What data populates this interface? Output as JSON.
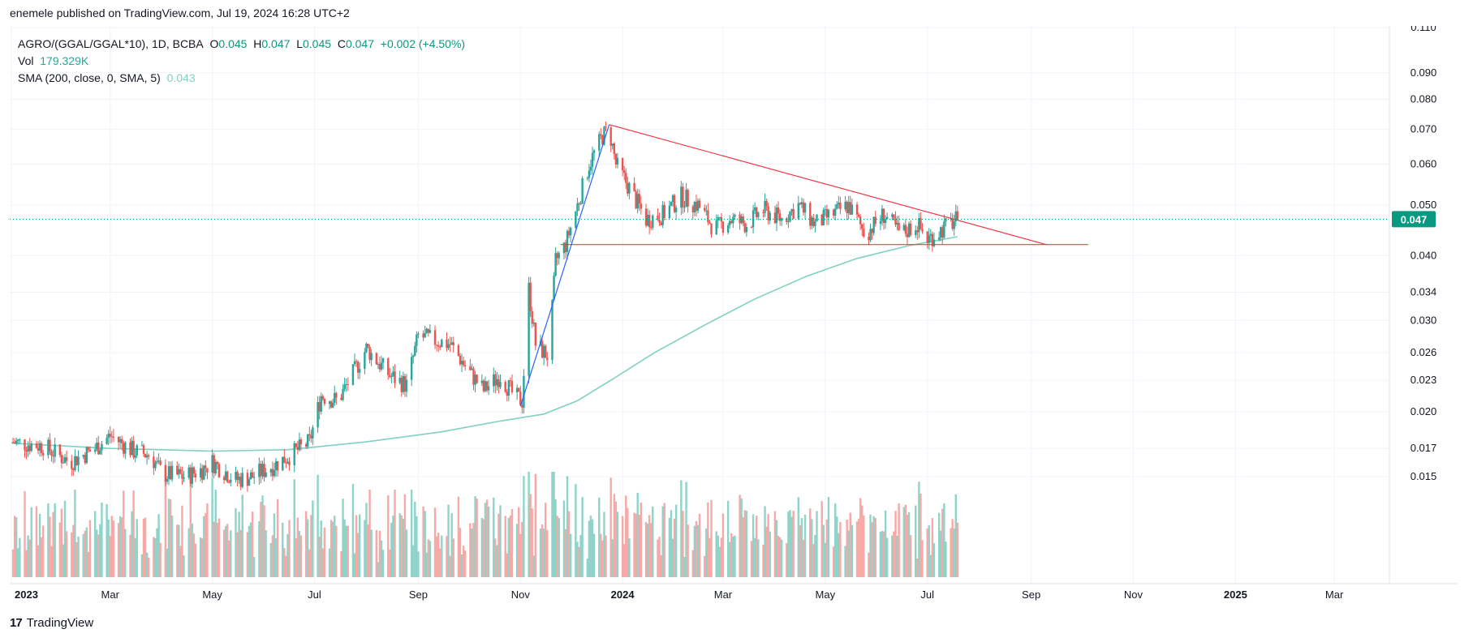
{
  "header": {
    "published": "enemele published on TradingView.com, Jul 19, 2024 16:28 UTC+2"
  },
  "legend": {
    "symbol": "AGRO/(GGAL/GGAL*10), 1D, BCBA",
    "o_label": "O",
    "o": "0.045",
    "h_label": "H",
    "h": "0.047",
    "l_label": "L",
    "l": "0.045",
    "c_label": "C",
    "c": "0.047",
    "change": "+0.002 (+4.50%)",
    "vol_label": "Vol",
    "vol": "179.329K",
    "sma_label": "SMA (200, close, 0, SMA, 5)",
    "sma": "0.043"
  },
  "brand": {
    "name": "TradingView",
    "logo": "17"
  },
  "colors": {
    "up": "#26a69a",
    "down": "#ef5350",
    "up_vol": "#8fd3c9",
    "down_vol": "#f7a9a7",
    "sma": "#7fd1c1",
    "trendline": "#f23645",
    "impulse": "#2962ff",
    "price_tag": "#089981"
  },
  "chart_data": {
    "type": "candlestick",
    "scale": "log",
    "interval": "1D",
    "y_ticks": [
      0.11,
      0.09,
      0.08,
      0.07,
      0.06,
      0.05,
      0.04,
      0.034,
      0.03,
      0.026,
      0.023,
      0.02,
      0.017,
      0.015
    ],
    "y_tick_labels": [
      "0.110",
      "0.090",
      "0.080",
      "0.070",
      "0.060",
      "0.050",
      "0.040",
      "0.034",
      "0.030",
      "0.026",
      "0.023",
      "0.020",
      "0.017",
      "0.015"
    ],
    "x_ticks": [
      {
        "date": "2023-01-01",
        "label": "2023",
        "bold": true
      },
      {
        "date": "2023-03-01",
        "label": "Mar"
      },
      {
        "date": "2023-05-01",
        "label": "May"
      },
      {
        "date": "2023-07-01",
        "label": "Jul"
      },
      {
        "date": "2023-09-01",
        "label": "Sep"
      },
      {
        "date": "2023-11-01",
        "label": "Nov"
      },
      {
        "date": "2024-01-01",
        "label": "2024",
        "bold": true
      },
      {
        "date": "2024-03-01",
        "label": "Mar"
      },
      {
        "date": "2024-05-01",
        "label": "May"
      },
      {
        "date": "2024-07-01",
        "label": "Jul"
      },
      {
        "date": "2024-09-01",
        "label": "Sep"
      },
      {
        "date": "2024-11-01",
        "label": "Nov"
      },
      {
        "date": "2025-01-01",
        "label": "2025",
        "bold": true
      },
      {
        "date": "2025-03-01",
        "label": "Mar"
      }
    ],
    "x_range": [
      "2023-01-01",
      "2025-03-31"
    ],
    "last_price": 0.047,
    "last_price_label": "0.047",
    "price_path": [
      [
        "2023-01-01",
        0.0175
      ],
      [
        "2023-01-20",
        0.0172
      ],
      [
        "2023-02-05",
        0.016
      ],
      [
        "2023-02-20",
        0.017
      ],
      [
        "2023-03-01",
        0.018
      ],
      [
        "2023-03-15",
        0.0168
      ],
      [
        "2023-03-25",
        0.0165
      ],
      [
        "2023-04-01",
        0.0152
      ],
      [
        "2023-04-15",
        0.015
      ],
      [
        "2023-04-25",
        0.0155
      ],
      [
        "2023-05-01",
        0.016
      ],
      [
        "2023-05-15",
        0.0148
      ],
      [
        "2023-05-25",
        0.015
      ],
      [
        "2023-06-10",
        0.016
      ],
      [
        "2023-06-20",
        0.0168
      ],
      [
        "2023-06-28",
        0.0175
      ],
      [
        "2023-07-05",
        0.0215
      ],
      [
        "2023-07-15",
        0.021
      ],
      [
        "2023-07-25",
        0.024
      ],
      [
        "2023-08-01",
        0.0265
      ],
      [
        "2023-08-15",
        0.0235
      ],
      [
        "2023-08-25",
        0.0225
      ],
      [
        "2023-09-01",
        0.028
      ],
      [
        "2023-09-10",
        0.0275
      ],
      [
        "2023-09-20",
        0.027
      ],
      [
        "2023-10-01",
        0.024
      ],
      [
        "2023-10-10",
        0.022
      ],
      [
        "2023-10-20",
        0.0235
      ],
      [
        "2023-10-28",
        0.0215
      ],
      [
        "2023-11-02",
        0.021
      ],
      [
        "2023-11-06",
        0.0345
      ],
      [
        "2023-11-10",
        0.027
      ],
      [
        "2023-11-18",
        0.0255
      ],
      [
        "2023-11-22",
        0.039
      ],
      [
        "2023-11-28",
        0.042
      ],
      [
        "2023-12-05",
        0.05
      ],
      [
        "2023-12-12",
        0.06
      ],
      [
        "2023-12-20",
        0.068
      ],
      [
        "2023-12-24",
        0.07
      ],
      [
        "2023-12-28",
        0.06
      ],
      [
        "2024-01-05",
        0.054
      ],
      [
        "2024-01-15",
        0.047
      ],
      [
        "2024-01-25",
        0.048
      ],
      [
        "2024-02-05",
        0.052
      ],
      [
        "2024-02-15",
        0.05
      ],
      [
        "2024-02-25",
        0.045
      ],
      [
        "2024-03-05",
        0.047
      ],
      [
        "2024-03-15",
        0.046
      ],
      [
        "2024-03-25",
        0.049
      ],
      [
        "2024-04-05",
        0.047
      ],
      [
        "2024-04-15",
        0.05
      ],
      [
        "2024-04-25",
        0.046
      ],
      [
        "2024-05-05",
        0.048
      ],
      [
        "2024-05-15",
        0.05
      ],
      [
        "2024-05-25",
        0.044
      ],
      [
        "2024-06-05",
        0.048
      ],
      [
        "2024-06-15",
        0.044
      ],
      [
        "2024-06-25",
        0.046
      ],
      [
        "2024-07-01",
        0.043
      ],
      [
        "2024-07-10",
        0.045
      ],
      [
        "2024-07-19",
        0.047
      ]
    ],
    "sma200_path": [
      [
        "2023-01-01",
        0.0174
      ],
      [
        "2023-03-01",
        0.017
      ],
      [
        "2023-05-01",
        0.0168
      ],
      [
        "2023-06-15",
        0.0169
      ],
      [
        "2023-08-01",
        0.0175
      ],
      [
        "2023-09-15",
        0.0183
      ],
      [
        "2023-10-20",
        0.0192
      ],
      [
        "2023-11-15",
        0.0198
      ],
      [
        "2023-12-05",
        0.021
      ],
      [
        "2023-12-25",
        0.023
      ],
      [
        "2024-01-20",
        0.026
      ],
      [
        "2024-02-20",
        0.0295
      ],
      [
        "2024-03-20",
        0.033
      ],
      [
        "2024-04-20",
        0.0365
      ],
      [
        "2024-05-20",
        0.0395
      ],
      [
        "2024-06-20",
        0.0418
      ],
      [
        "2024-07-19",
        0.0435
      ]
    ],
    "annotations": [
      {
        "type": "trendline",
        "name": "descending-resistance",
        "from": [
          "2023-12-24",
          0.0715
        ],
        "to": [
          "2024-09-10",
          0.042
        ]
      },
      {
        "type": "trendline",
        "name": "horizontal-support",
        "from": [
          "2023-11-25",
          0.042
        ],
        "to": [
          "2024-10-05",
          0.042
        ]
      },
      {
        "type": "trendline",
        "name": "impulse-leg",
        "from": [
          "2023-11-01",
          0.0205
        ],
        "to": [
          "2023-12-24",
          0.0715
        ]
      }
    ]
  }
}
